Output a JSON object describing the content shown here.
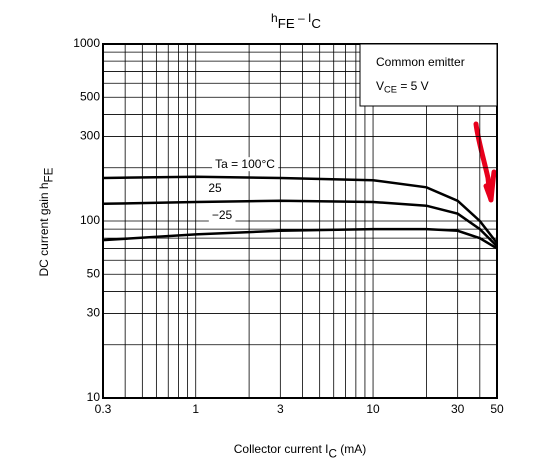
{
  "chart_data": {
    "type": "line",
    "title": [
      "h",
      "FE",
      " – I",
      "C"
    ],
    "xlabel": [
      "Collector current  I",
      "C",
      "  (mA)"
    ],
    "ylabel": [
      "DC current gain  h",
      "FE"
    ],
    "annotation": {
      "line1": "Common emitter",
      "line2": [
        "V",
        "CE",
        " = 5 V"
      ]
    },
    "log_x": true,
    "log_y": true,
    "grid": true,
    "x": [
      0.3,
      1,
      3,
      10,
      20,
      30,
      40,
      50
    ],
    "series": [
      {
        "name": "Ta = 100°C",
        "color": "#000000",
        "values": [
          175,
          178,
          175,
          170,
          155,
          130,
          100,
          75
        ]
      },
      {
        "name": "25",
        "color": "#000000",
        "values": [
          125,
          128,
          130,
          128,
          122,
          110,
          90,
          72
        ]
      },
      {
        "name": "−25",
        "color": "#000000",
        "values": [
          78,
          84,
          88,
          90,
          90,
          88,
          80,
          70
        ]
      }
    ],
    "xlim": [
      0.3,
      50
    ],
    "ylim": [
      10,
      1000
    ],
    "xticks": [
      0.3,
      1,
      3,
      10,
      30,
      50
    ],
    "yticks": [
      10,
      30,
      50,
      100,
      300,
      500,
      1000
    ],
    "xminor": [
      0.4,
      0.5,
      0.6,
      0.7,
      0.8,
      0.9,
      2,
      4,
      5,
      6,
      7,
      8,
      9,
      20,
      40
    ],
    "yminor": [
      20,
      40,
      60,
      70,
      80,
      90,
      200,
      400,
      600,
      700,
      800,
      900
    ]
  }
}
